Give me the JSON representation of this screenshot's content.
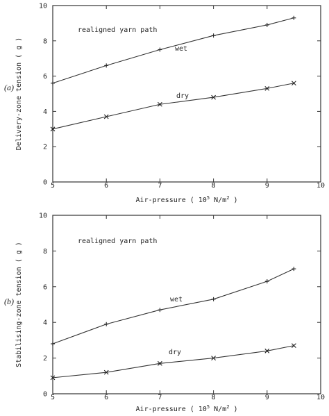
{
  "chart_data": [
    {
      "type": "line",
      "panel_label": "(a)",
      "ylabel": "Delivery-zone tension ( g )",
      "xlabel": "Air-pressure ( 10",
      "xlabel_sup": "5",
      "xlabel_unit": " N/m",
      "xlabel_unit_sup": "2",
      "xlabel_close": " )",
      "annotation": "realigned yarn path",
      "xlim": [
        5,
        10
      ],
      "ylim": [
        0,
        10
      ],
      "xticks": [
        "5",
        "6",
        "7",
        "8",
        "9",
        "10"
      ],
      "yticks": [
        "0",
        "2",
        "4",
        "6",
        "8",
        "10"
      ],
      "grid": false,
      "series": [
        {
          "name": "wet",
          "marker": "+",
          "x": [
            5,
            6,
            7,
            8,
            9,
            9.5
          ],
          "values": [
            5.6,
            6.6,
            7.5,
            8.3,
            8.9,
            9.3
          ]
        },
        {
          "name": "dry",
          "marker": "x",
          "x": [
            5,
            6,
            7,
            8,
            9,
            9.5
          ],
          "values": [
            3.0,
            3.7,
            4.4,
            4.8,
            5.3,
            5.6
          ]
        }
      ]
    },
    {
      "type": "line",
      "panel_label": "(b)",
      "ylabel": "Stabilising-zone tension ( g )",
      "xlabel": "Air-pressure ( 10",
      "xlabel_sup": "5",
      "xlabel_unit": " N/m",
      "xlabel_unit_sup": "2",
      "xlabel_close": " )",
      "annotation": "realigned yarn path",
      "xlim": [
        5,
        10
      ],
      "ylim": [
        0,
        10
      ],
      "xticks": [
        "5",
        "6",
        "7",
        "8",
        "9",
        "10"
      ],
      "yticks": [
        "0",
        "2",
        "4",
        "6",
        "8",
        "10"
      ],
      "grid": false,
      "series": [
        {
          "name": "wet",
          "marker": "+",
          "x": [
            5,
            6,
            7,
            8,
            9,
            9.5
          ],
          "values": [
            2.8,
            3.9,
            4.7,
            5.3,
            6.3,
            7.0
          ]
        },
        {
          "name": "dry",
          "marker": "x",
          "x": [
            5,
            6,
            7,
            8,
            9,
            9.5
          ],
          "values": [
            0.9,
            1.2,
            1.7,
            2.0,
            2.4,
            2.7
          ]
        }
      ]
    }
  ]
}
